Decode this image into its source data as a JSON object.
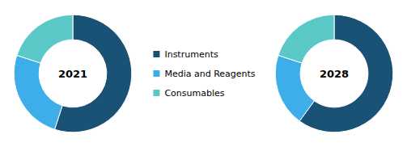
{
  "chart_data": [
    {
      "type": "pie",
      "title": "2021",
      "categories": [
        "Instruments",
        "Media and Reagents",
        "Consumables"
      ],
      "values": [
        55,
        25,
        20
      ],
      "colors": [
        "#1a5276",
        "#3daee9",
        "#5bc8c8"
      ],
      "legend": "center"
    },
    {
      "type": "pie",
      "title": "2028",
      "categories": [
        "Instruments",
        "Media and Reagents",
        "Consumables"
      ],
      "values": [
        60,
        20,
        20
      ],
      "colors": [
        "#1a5276",
        "#3daee9",
        "#5bc8c8"
      ],
      "legend": "center"
    }
  ]
}
